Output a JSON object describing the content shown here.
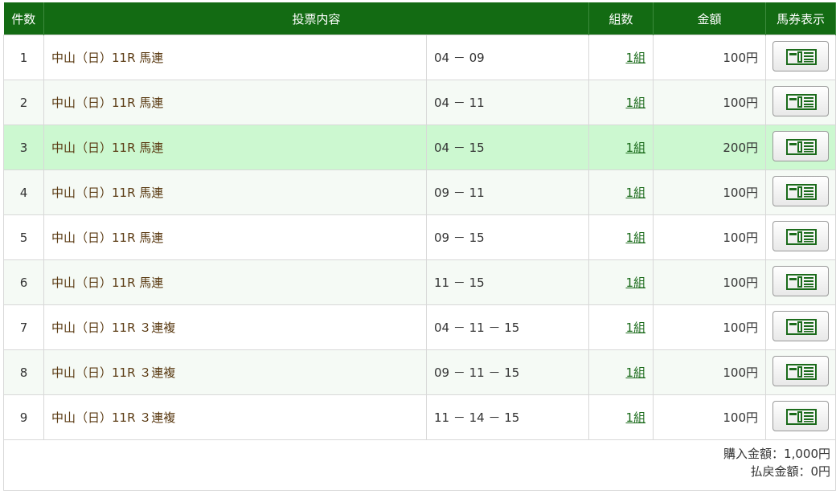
{
  "header": {
    "count": "件数",
    "content": "投票内容",
    "combos": "組数",
    "amount": "金額",
    "ticket": "馬券表示"
  },
  "rows": [
    {
      "no": "1",
      "race": "中山（日）11R 馬連",
      "horses": "04 － 09",
      "combos": "1組",
      "amount": "100円"
    },
    {
      "no": "2",
      "race": "中山（日）11R 馬連",
      "horses": "04 － 11",
      "combos": "1組",
      "amount": "100円"
    },
    {
      "no": "3",
      "race": "中山（日）11R 馬連",
      "horses": "04 － 15",
      "combos": "1組",
      "amount": "200円"
    },
    {
      "no": "4",
      "race": "中山（日）11R 馬連",
      "horses": "09 － 11",
      "combos": "1組",
      "amount": "100円"
    },
    {
      "no": "5",
      "race": "中山（日）11R 馬連",
      "horses": "09 － 15",
      "combos": "1組",
      "amount": "100円"
    },
    {
      "no": "6",
      "race": "中山（日）11R 馬連",
      "horses": "11 － 15",
      "combos": "1組",
      "amount": "100円"
    },
    {
      "no": "7",
      "race": "中山（日）11R ３連複",
      "horses": "04 － 11 － 15",
      "combos": "1組",
      "amount": "100円"
    },
    {
      "no": "8",
      "race": "中山（日）11R ３連複",
      "horses": "09 － 11 － 15",
      "combos": "1組",
      "amount": "100円"
    },
    {
      "no": "9",
      "race": "中山（日）11R ３連複",
      "horses": "11 － 14 － 15",
      "combos": "1組",
      "amount": "100円"
    }
  ],
  "footer": {
    "purchase": "購入金額：1,000円",
    "refund": "払戻金額：0円"
  },
  "colors": {
    "header": "#136b13",
    "highlight": "#ccf8d0"
  }
}
